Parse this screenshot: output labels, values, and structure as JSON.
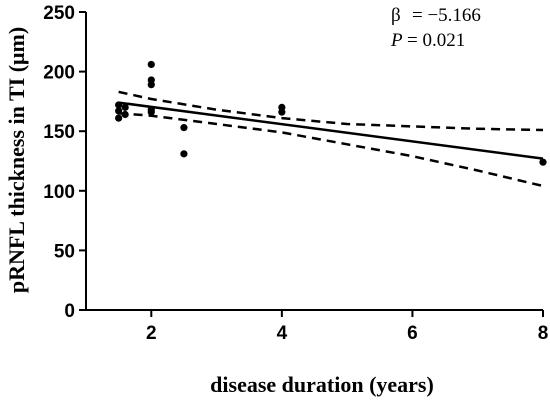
{
  "chart_data": {
    "type": "scatter",
    "xlabel": "disease duration (years)",
    "ylabel": "pRNFL thickness in TI (μm)",
    "xlim": [
      1,
      8
    ],
    "ylim": [
      0,
      250
    ],
    "x_ticks": [
      2,
      4,
      6,
      8
    ],
    "x_tick_labels": [
      "2",
      "4",
      "6",
      "8"
    ],
    "y_ticks": [
      0,
      50,
      100,
      150,
      200,
      250
    ],
    "y_tick_labels": [
      "0",
      "50",
      "100",
      "150",
      "200",
      "250"
    ],
    "grid": false,
    "points": [
      {
        "x": 1.5,
        "y": 172
      },
      {
        "x": 1.5,
        "y": 167
      },
      {
        "x": 1.5,
        "y": 161
      },
      {
        "x": 1.6,
        "y": 170
      },
      {
        "x": 1.6,
        "y": 164
      },
      {
        "x": 2.0,
        "y": 206
      },
      {
        "x": 2.0,
        "y": 193
      },
      {
        "x": 2.0,
        "y": 189
      },
      {
        "x": 2.0,
        "y": 168
      },
      {
        "x": 2.0,
        "y": 166
      },
      {
        "x": 2.5,
        "y": 153
      },
      {
        "x": 2.5,
        "y": 131
      },
      {
        "x": 4.0,
        "y": 170
      },
      {
        "x": 4.0,
        "y": 166
      },
      {
        "x": 8.0,
        "y": 124
      }
    ],
    "regression_line": {
      "x": [
        1.5,
        8
      ],
      "y": [
        174,
        127
      ]
    },
    "ci_upper": {
      "x": [
        1.5,
        2,
        3,
        4,
        5,
        6,
        7,
        8
      ],
      "y": [
        183,
        177,
        168,
        161,
        156,
        154,
        152,
        151
      ]
    },
    "ci_lower": {
      "x": [
        1.5,
        2,
        3,
        4,
        5,
        6,
        7,
        8
      ],
      "y": [
        165,
        163,
        156,
        149,
        139,
        129,
        117,
        104
      ]
    },
    "annotation": {
      "beta_symbol": "β",
      "beta_value": "= −5.166",
      "p_symbol": "P",
      "p_value": "= 0.021"
    }
  }
}
